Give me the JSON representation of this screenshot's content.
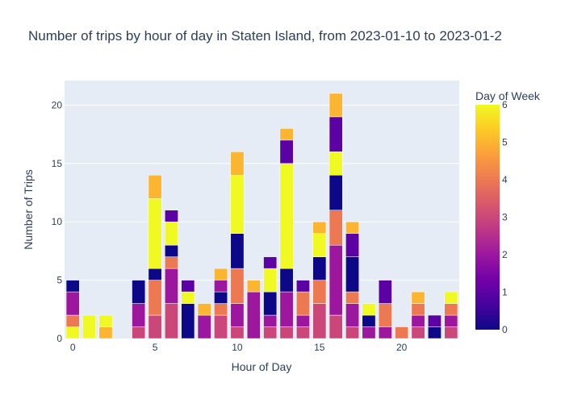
{
  "chart_data": {
    "type": "bar",
    "stacked": true,
    "title": "Number of trips by hour of day in Staten Island, from 2023-01-10 to 2023-01-2",
    "xlabel": "Hour of Day",
    "ylabel": "Number of Trips",
    "xlim": [
      -0.5,
      23.5
    ],
    "ylim": [
      0,
      22.1
    ],
    "x_ticks": [
      0,
      5,
      10,
      15,
      20
    ],
    "y_ticks": [
      0,
      5,
      10,
      15,
      20
    ],
    "grid": true,
    "colorbar": {
      "title": "Day of Week",
      "range": [
        0,
        6
      ],
      "ticks": [
        0,
        1,
        2,
        3,
        4,
        5,
        6
      ],
      "colorscale": [
        "#0d0887",
        "#46039f",
        "#7201a8",
        "#9c179e",
        "#bd3786",
        "#d8576b",
        "#ed7953",
        "#fb9f3a",
        "#fdca26",
        "#f0f921"
      ]
    },
    "x": [
      0,
      1,
      2,
      4,
      5,
      6,
      7,
      8,
      9,
      10,
      11,
      12,
      13,
      14,
      15,
      16,
      17,
      18,
      19,
      20,
      21,
      22,
      23
    ],
    "stacks": [
      [
        [
          6,
          1
        ],
        [
          4,
          1
        ],
        [
          2,
          2
        ],
        [
          0,
          1
        ]
      ],
      [
        [
          6,
          2
        ]
      ],
      [
        [
          5,
          1
        ],
        [
          6,
          1
        ]
      ],
      [
        [
          3,
          1
        ],
        [
          2,
          2
        ],
        [
          0,
          2
        ]
      ],
      [
        [
          3,
          2
        ],
        [
          4,
          3
        ],
        [
          0,
          1
        ],
        [
          6,
          6
        ],
        [
          5,
          2
        ]
      ],
      [
        [
          3,
          3
        ],
        [
          2,
          3
        ],
        [
          4,
          1
        ],
        [
          0,
          1
        ],
        [
          6,
          2
        ],
        [
          1,
          1
        ]
      ],
      [
        [
          0,
          3
        ],
        [
          6,
          1
        ],
        [
          1,
          1
        ]
      ],
      [
        [
          2,
          2
        ],
        [
          5,
          1
        ]
      ],
      [
        [
          3,
          2
        ],
        [
          4,
          1
        ],
        [
          0,
          1
        ],
        [
          2,
          1
        ],
        [
          5,
          1
        ]
      ],
      [
        [
          3,
          1
        ],
        [
          2,
          2
        ],
        [
          4,
          3
        ],
        [
          0,
          3
        ],
        [
          6,
          5
        ],
        [
          5,
          2
        ]
      ],
      [
        [
          2,
          4
        ],
        [
          5,
          1
        ]
      ],
      [
        [
          3,
          1
        ],
        [
          2,
          1
        ],
        [
          0,
          2
        ],
        [
          6,
          2
        ],
        [
          1,
          1
        ]
      ],
      [
        [
          3,
          1
        ],
        [
          2,
          3
        ],
        [
          0,
          2
        ],
        [
          6,
          9
        ],
        [
          1,
          2
        ],
        [
          5,
          1
        ]
      ],
      [
        [
          3,
          1
        ],
        [
          2,
          1
        ],
        [
          4,
          2
        ],
        [
          1,
          1
        ]
      ],
      [
        [
          3,
          3
        ],
        [
          4,
          2
        ],
        [
          0,
          2
        ],
        [
          6,
          2
        ],
        [
          5,
          1
        ]
      ],
      [
        [
          3,
          2
        ],
        [
          2,
          6
        ],
        [
          4,
          3
        ],
        [
          0,
          3
        ],
        [
          6,
          2
        ],
        [
          1,
          3
        ],
        [
          5,
          2
        ]
      ],
      [
        [
          3,
          1
        ],
        [
          2,
          2
        ],
        [
          4,
          1
        ],
        [
          0,
          3
        ],
        [
          1,
          2
        ],
        [
          5,
          1
        ]
      ],
      [
        [
          2,
          1
        ],
        [
          0,
          1
        ],
        [
          6,
          1
        ]
      ],
      [
        [
          2,
          1
        ],
        [
          4,
          2
        ],
        [
          1,
          2
        ]
      ],
      [
        [
          4,
          1
        ]
      ],
      [
        [
          3,
          1
        ],
        [
          2,
          1
        ],
        [
          4,
          1
        ],
        [
          5,
          1
        ]
      ],
      [
        [
          0,
          1
        ],
        [
          1,
          1
        ]
      ],
      [
        [
          3,
          1
        ],
        [
          2,
          1
        ],
        [
          4,
          1
        ],
        [
          6,
          1
        ]
      ]
    ]
  }
}
